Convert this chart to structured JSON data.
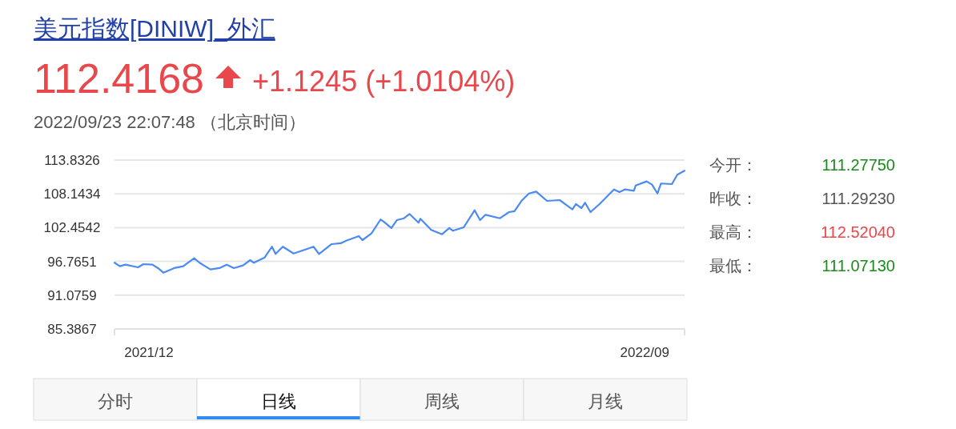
{
  "chart_data": {
    "type": "line",
    "title": "美元指数[DINIW]_外汇",
    "subtitle": "112.4168",
    "annotations": [
      "+1.1245 (+1.0104%)",
      "2022/09/23 22:07:48 （北京时间）",
      "今开：",
      "111.27750",
      "昨收：",
      "111.29230",
      "最高：",
      "112.52040",
      "最低：",
      "111.07130",
      "分时",
      "日线",
      "周线",
      "月线"
    ],
    "x": [
      "2021-11-12",
      "2021-11-15",
      "2021-11-18",
      "2021-11-25",
      "2021-11-28",
      "2021-12-03",
      "2021-12-06",
      "2021-12-09",
      "2021-12-15",
      "2021-12-20",
      "2021-12-26",
      "2021-12-29",
      "2022-01-04",
      "2022-01-09",
      "2022-01-13",
      "2022-01-17",
      "2022-01-22",
      "2022-01-26",
      "2022-01-28",
      "2022-02-03",
      "2022-02-07",
      "2022-02-09",
      "2022-02-13",
      "2022-02-19",
      "2022-03-02",
      "2022-03-05",
      "2022-03-12",
      "2022-03-17",
      "2022-03-20",
      "2022-03-27",
      "2022-03-29",
      "2022-04-03",
      "2022-04-08",
      "2022-04-10",
      "2022-04-14",
      "2022-04-17",
      "2022-04-21",
      "2022-04-24",
      "2022-04-29",
      "2022-04-30",
      "2022-05-06",
      "2022-05-12",
      "2022-05-16",
      "2022-05-18",
      "2022-05-24",
      "2022-05-30",
      "2022-06-02",
      "2022-06-05",
      "2022-06-13",
      "2022-06-18",
      "2022-06-21",
      "2022-06-25",
      "2022-06-29",
      "2022-07-03",
      "2022-07-09",
      "2022-07-16",
      "2022-07-23",
      "2022-07-25",
      "2022-07-28",
      "2022-07-30",
      "2022-08-02",
      "2022-08-07",
      "2022-08-15",
      "2022-08-18",
      "2022-08-21",
      "2022-08-26",
      "2022-08-27",
      "2022-09-02",
      "2022-09-05",
      "2022-09-08",
      "2022-09-10",
      "2022-09-16",
      "2022-09-19",
      "2022-09-23"
    ],
    "values": [
      96.54,
      95.95,
      96.22,
      95.77,
      96.31,
      96.22,
      95.64,
      94.87,
      95.64,
      95.95,
      97.29,
      96.54,
      95.41,
      95.64,
      96.22,
      95.64,
      96.08,
      96.98,
      96.54,
      97.43,
      99.24,
      98.02,
      99.24,
      98.1,
      99.24,
      98.02,
      99.68,
      99.82,
      100.26,
      101.03,
      100.35,
      101.47,
      103.82,
      103.41,
      102.38,
      103.72,
      104.03,
      104.76,
      103.28,
      103.95,
      102.06,
      101.34,
      102.38,
      101.93,
      102.51,
      105.38,
      103.72,
      104.62,
      104.03,
      105.07,
      105.21,
      107.0,
      108.21,
      108.53,
      106.96,
      107.09,
      105.52,
      106.42,
      105.74,
      106.65,
      105.07,
      106.42,
      108.89,
      108.44,
      108.89,
      108.67,
      109.56,
      110.24,
      109.7,
      108.21,
      109.89,
      109.79,
      111.37,
      112.04
    ],
    "color": "#4a8af4",
    "xlim": [
      "2021-11-12",
      "2022-09-23"
    ],
    "xticks": [
      {
        "value": "2021-12-01",
        "label": "2021/12"
      },
      {
        "value": "2022-09-01",
        "label": "2022/09"
      }
    ],
    "ylim": [
      85.3867,
      113.8326
    ],
    "yticks": [
      85.3867,
      91.0759,
      96.7651,
      102.4542,
      108.1434,
      113.8326
    ],
    "grid": "y"
  }
}
